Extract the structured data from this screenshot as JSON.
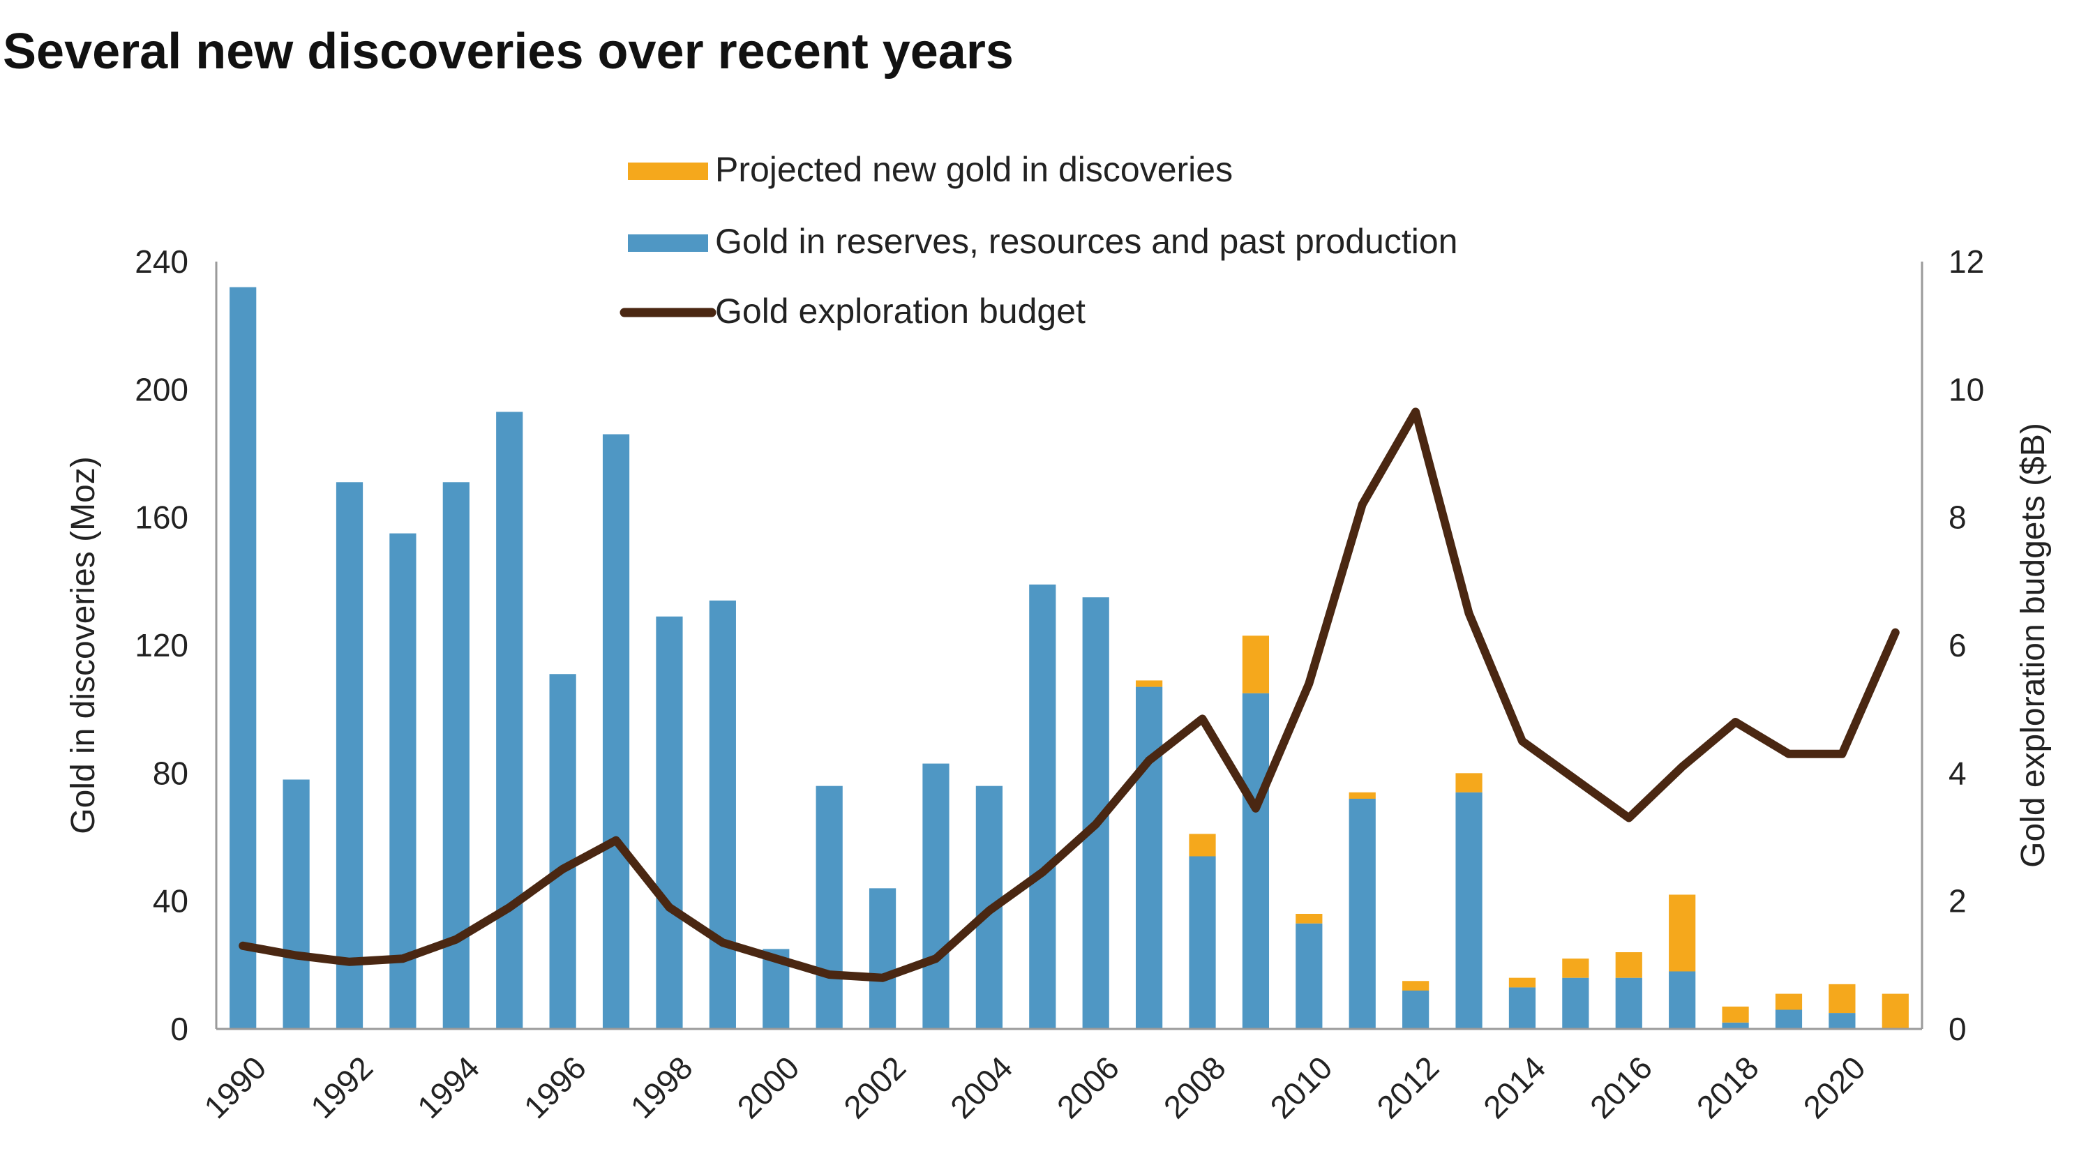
{
  "chart_data": {
    "type": "bar",
    "title": "Several new discoveries over recent years",
    "ylabel": "Gold in discoveries (Moz)",
    "y2label": "Gold exploration budgets ($B)",
    "ylim": [
      0,
      240
    ],
    "y2lim": [
      0,
      12
    ],
    "yticks": [
      "0",
      "40",
      "80",
      "120",
      "160",
      "200",
      "240"
    ],
    "y2ticks": [
      "0",
      "2",
      "4",
      "6",
      "8",
      "10",
      "12"
    ],
    "categories": [
      1990,
      1991,
      1992,
      1993,
      1994,
      1995,
      1996,
      1997,
      1998,
      1999,
      2000,
      2001,
      2002,
      2003,
      2004,
      2005,
      2006,
      2007,
      2008,
      2009,
      2010,
      2011,
      2012,
      2013,
      2014,
      2015,
      2016,
      2017,
      2018,
      2019,
      2020,
      2021
    ],
    "xtick_labels": [
      "1990",
      "1992",
      "1994",
      "1996",
      "1998",
      "2000",
      "2002",
      "2004",
      "2006",
      "2008",
      "2010",
      "2012",
      "2014",
      "2016",
      "2018",
      "2020"
    ],
    "stacked": true,
    "grid": false,
    "legend_position": "top-center",
    "series": [
      {
        "name": "Gold in reserves, resources and past production",
        "kind": "bar",
        "axis": "left",
        "color": "#4f97c4",
        "values": [
          232,
          78,
          171,
          155,
          171,
          193,
          111,
          186,
          129,
          134,
          25,
          76,
          44,
          83,
          76,
          139,
          135,
          107,
          54,
          105,
          33,
          72,
          12,
          74,
          13,
          16,
          16,
          18,
          2,
          6,
          5,
          0
        ]
      },
      {
        "name": "Projected new gold in discoveries",
        "kind": "bar",
        "axis": "left",
        "color": "#f5a81c",
        "values": [
          0,
          0,
          0,
          0,
          0,
          0,
          0,
          0,
          0,
          0,
          0,
          0,
          0,
          0,
          0,
          0,
          0,
          2,
          7,
          18,
          3,
          2,
          3,
          6,
          3,
          6,
          8,
          24,
          5,
          5,
          9,
          11
        ]
      },
      {
        "name": "Gold exploration budget",
        "kind": "line",
        "axis": "right",
        "color": "#4a2712",
        "values": [
          1.3,
          1.15,
          1.05,
          1.1,
          1.4,
          1.9,
          2.5,
          2.95,
          1.9,
          1.35,
          1.1,
          0.85,
          0.8,
          1.1,
          1.85,
          2.45,
          3.2,
          4.2,
          4.85,
          3.45,
          5.4,
          8.2,
          9.65,
          6.5,
          4.5,
          3.9,
          3.3,
          4.1,
          4.8,
          4.3,
          4.3,
          6.2
        ]
      }
    ]
  }
}
